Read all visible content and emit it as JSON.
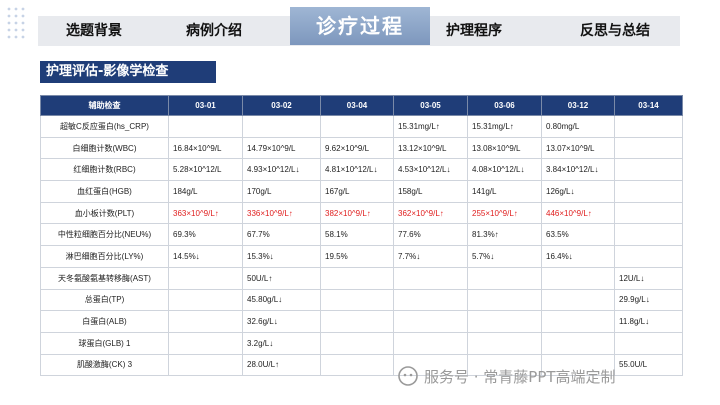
{
  "nav": {
    "tabs": [
      "选题背景",
      "病例介绍",
      "诊疗过程",
      "护理程序",
      "反思与总结"
    ],
    "active": "诊疗过程"
  },
  "section_title": "护理评估-影像学检查",
  "table": {
    "headers": [
      "辅助检查",
      "03-01",
      "03-02",
      "03-04",
      "03-05",
      "03-06",
      "03-12",
      "03-14"
    ],
    "rows": [
      {
        "label": "超敏C反应蛋白(hs_CRP)",
        "cells": [
          "",
          "",
          "",
          "15.31mg/L↑",
          "15.31mg/L↑",
          "0.80mg/L",
          ""
        ],
        "red": false
      },
      {
        "label": "白细胞计数(WBC)",
        "cells": [
          "16.84×10^9/L",
          "14.79×10^9/L",
          "9.62×10^9/L",
          "13.12×10^9/L",
          "13.08×10^9/L",
          "13.07×10^9/L",
          ""
        ],
        "red": false
      },
      {
        "label": "红细胞计数(RBC)",
        "cells": [
          "5.28×10^12/L",
          "4.93×10^12/L↓",
          "4.81×10^12/L↓",
          "4.53×10^12/L↓",
          "4.08×10^12/L↓",
          "3.84×10^12/L↓",
          ""
        ],
        "red": false
      },
      {
        "label": "血红蛋白(HGB)",
        "cells": [
          "184g/L",
          "170g/L",
          "167g/L",
          "158g/L",
          "141g/L",
          "126g/L↓",
          ""
        ],
        "red": false
      },
      {
        "label": "血小板计数(PLT)",
        "cells": [
          "363×10^9/L↑",
          "336×10^9/L↑",
          "382×10^9/L↑",
          "362×10^9/L↑",
          "255×10^9/L↑",
          "446×10^9/L↑",
          ""
        ],
        "red": true
      },
      {
        "label": "中性粒细胞百分比(NEU%)",
        "cells": [
          "69.3%",
          "67.7%",
          "58.1%",
          "77.6%",
          "81.3%↑",
          "63.5%",
          ""
        ],
        "red": false
      },
      {
        "label": "淋巴细胞百分比(LY%)",
        "cells": [
          "14.5%↓",
          "15.3%↓",
          "19.5%",
          "7.7%↓",
          "5.7%↓",
          "16.4%↓",
          ""
        ],
        "red": false
      },
      {
        "label": "天冬氨酸氨基转移酶(AST)",
        "cells": [
          "",
          "50U/L↑",
          "",
          "",
          "",
          "",
          "12U/L↓"
        ],
        "red": false
      },
      {
        "label": "总蛋白(TP)",
        "cells": [
          "",
          "45.80g/L↓",
          "",
          "",
          "",
          "",
          "29.9g/L↓"
        ],
        "red": false
      },
      {
        "label": "白蛋白(ALB)",
        "cells": [
          "",
          "32.6g/L↓",
          "",
          "",
          "",
          "",
          "11.8g/L↓"
        ],
        "red": false
      },
      {
        "label": "球蛋白(GLB) 1",
        "cells": [
          "",
          "3.2g/L↓",
          "",
          "",
          "",
          "",
          ""
        ],
        "red": false
      },
      {
        "label": "肌酸激酶(CK) 3",
        "cells": [
          "",
          "28.0U/L↑",
          "",
          "",
          "",
          "",
          "55.0U/L"
        ],
        "red": false
      }
    ]
  },
  "watermark": "服务号 · 常青藤PPT高端定制",
  "colors": {
    "header_blue": "#1f3d78",
    "highlight_red": "#e02020",
    "tab_active": "#8aa3c6"
  }
}
